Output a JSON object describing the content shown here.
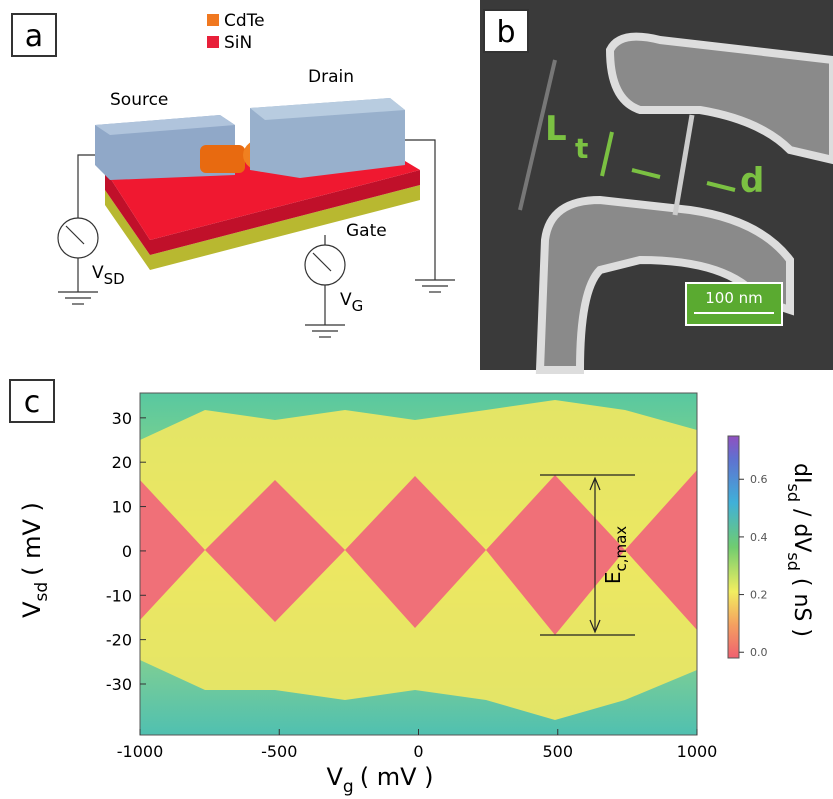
{
  "panel_a": {
    "label": "a",
    "legend": [
      "CdTe",
      "SiN"
    ],
    "source": "Source",
    "drain": "Drain",
    "gate": "Gate",
    "vsd": {
      "main": "V",
      "sub": "SD"
    },
    "vg": {
      "main": "V",
      "sub": "G"
    }
  },
  "panel_b": {
    "label": "b",
    "l": "L",
    "t": "t",
    "d": "d",
    "scale_bar": "100 nm"
  },
  "panel_c": {
    "label": "c",
    "xlabel": {
      "main": "V",
      "sub": "g",
      "unit": "( mV )"
    },
    "ylabel": {
      "main": "V",
      "sub": "sd",
      "unit": "( mV )"
    },
    "clabel": {
      "a": "dI",
      "a_sub": "sd",
      "mid": " / dV",
      "b_sub": "sd",
      "unit": " ( nS )"
    },
    "annotation": {
      "main": "E",
      "sub": "c,max"
    },
    "xlim": [
      -1000,
      1000
    ],
    "xticks": [
      -1000,
      -500,
      0,
      500,
      1000
    ],
    "ylim": [
      -41.5,
      35.6
    ],
    "yticks": [
      -30,
      -20,
      -10,
      0,
      10,
      20,
      30
    ],
    "clim": [
      -0.02,
      0.75
    ],
    "cticks": [
      {
        "value": 0,
        "label": "0.0"
      },
      0.2,
      0.4,
      0.6
    ]
  }
}
